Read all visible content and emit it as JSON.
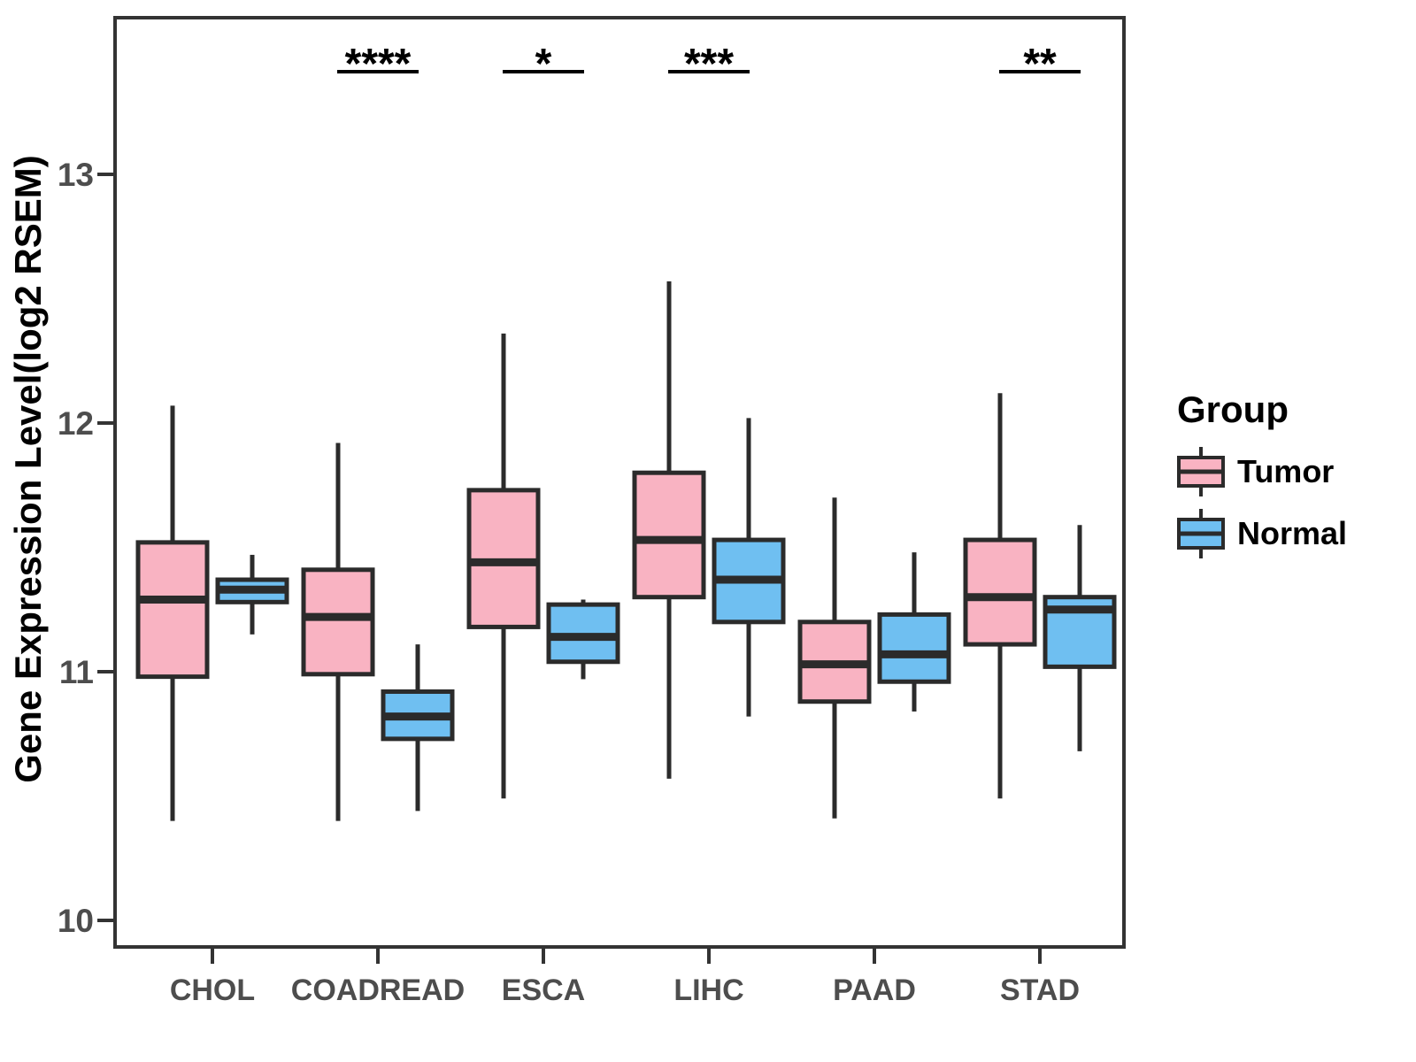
{
  "chart_data": {
    "type": "boxplot",
    "title": "",
    "ylabel": "Gene Expression Level(log2 RSEM)",
    "xlabel": "",
    "ylim": [
      9.85,
      13.65
    ],
    "y_ticks": [
      10,
      11,
      12,
      13
    ],
    "grid": "off",
    "legend_position": "right",
    "categories": [
      "CHOL",
      "COADREAD",
      "ESCA",
      "LIHC",
      "PAAD",
      "STAD"
    ],
    "series": [
      {
        "name": "Tumor",
        "color": "#F9B3C2",
        "boxes": [
          {
            "category": "CHOL",
            "whisker_low": 10.4,
            "q1": 10.98,
            "median": 11.29,
            "q3": 11.52,
            "whisker_high": 12.07
          },
          {
            "category": "COADREAD",
            "whisker_low": 10.4,
            "q1": 10.99,
            "median": 11.22,
            "q3": 11.41,
            "whisker_high": 11.92
          },
          {
            "category": "ESCA",
            "whisker_low": 10.49,
            "q1": 11.18,
            "median": 11.44,
            "q3": 11.73,
            "whisker_high": 12.36
          },
          {
            "category": "LIHC",
            "whisker_low": 10.57,
            "q1": 11.3,
            "median": 11.53,
            "q3": 11.8,
            "whisker_high": 12.57
          },
          {
            "category": "PAAD",
            "whisker_low": 10.41,
            "q1": 10.88,
            "median": 11.03,
            "q3": 11.2,
            "whisker_high": 11.7
          },
          {
            "category": "STAD",
            "whisker_low": 10.49,
            "q1": 11.11,
            "median": 11.3,
            "q3": 11.53,
            "whisker_high": 12.12
          }
        ]
      },
      {
        "name": "Normal",
        "color": "#6FBFF1",
        "boxes": [
          {
            "category": "CHOL",
            "whisker_low": 11.15,
            "q1": 11.28,
            "median": 11.33,
            "q3": 11.37,
            "whisker_high": 11.47
          },
          {
            "category": "COADREAD",
            "whisker_low": 10.44,
            "q1": 10.73,
            "median": 10.82,
            "q3": 10.92,
            "whisker_high": 11.11
          },
          {
            "category": "ESCA",
            "whisker_low": 10.97,
            "q1": 11.04,
            "median": 11.14,
            "q3": 11.27,
            "whisker_high": 11.29
          },
          {
            "category": "LIHC",
            "whisker_low": 10.82,
            "q1": 11.2,
            "median": 11.37,
            "q3": 11.53,
            "whisker_high": 12.02
          },
          {
            "category": "PAAD",
            "whisker_low": 10.84,
            "q1": 10.96,
            "median": 11.07,
            "q3": 11.23,
            "whisker_high": 11.48
          },
          {
            "category": "STAD",
            "whisker_low": 10.68,
            "q1": 11.02,
            "median": 11.25,
            "q3": 11.3,
            "whisker_high": 11.59
          }
        ]
      }
    ],
    "annotations": [
      {
        "category": "COADREAD",
        "label": "****"
      },
      {
        "category": "ESCA",
        "label": "*"
      },
      {
        "category": "LIHC",
        "label": "***"
      },
      {
        "category": "STAD",
        "label": "**"
      }
    ]
  },
  "legend": {
    "title": "Group",
    "items": [
      {
        "label": "Tumor",
        "color": "#F9B3C2"
      },
      {
        "label": "Normal",
        "color": "#6FBFF1"
      }
    ]
  },
  "colors": {
    "box_border": "#2B2B2B",
    "panel_border": "#333333",
    "tick_label": "#4D4D4D",
    "axis_title": "#000000"
  }
}
